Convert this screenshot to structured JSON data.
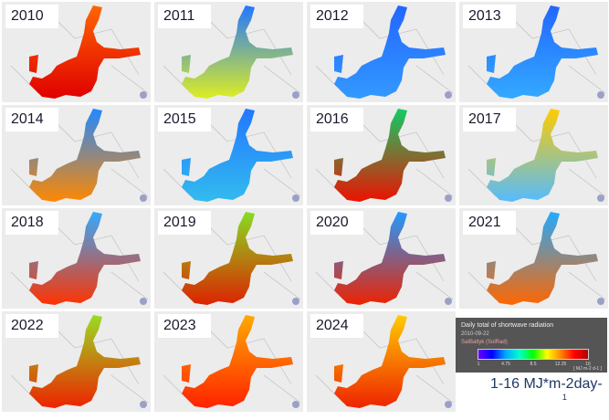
{
  "maps": [
    {
      "year": "2010",
      "north": "#ff6600",
      "south": "#e00000"
    },
    {
      "year": "2011",
      "north": "#2277ff",
      "south": "#ddee22"
    },
    {
      "year": "2012",
      "north": "#2266ff",
      "south": "#3399ff"
    },
    {
      "year": "2013",
      "north": "#2266ff",
      "south": "#33aaff"
    },
    {
      "year": "2014",
      "north": "#2288ff",
      "south": "#ff8800"
    },
    {
      "year": "2015",
      "north": "#2277ff",
      "south": "#33bbee"
    },
    {
      "year": "2016",
      "north": "#11cc66",
      "south": "#ee1100"
    },
    {
      "year": "2017",
      "north": "#ffcc00",
      "south": "#55bbff"
    },
    {
      "year": "2018",
      "north": "#33aaff",
      "south": "#ff3300"
    },
    {
      "year": "2019",
      "north": "#88dd22",
      "south": "#dd2200"
    },
    {
      "year": "2020",
      "north": "#2299ff",
      "south": "#ee2200"
    },
    {
      "year": "2021",
      "north": "#22aaff",
      "south": "#ff6600"
    },
    {
      "year": "2022",
      "north": "#99dd22",
      "south": "#ee2200"
    },
    {
      "year": "2023",
      "north": "#ffaa00",
      "south": "#ff2200"
    },
    {
      "year": "2024",
      "north": "#ffcc00",
      "south": "#ee2200"
    }
  ],
  "legend": {
    "title": "Daily total of shortwave radiation",
    "date": "2010-09-22",
    "source": "SatBaltyk (SolRad)",
    "ticks": [
      "1",
      "4.75",
      "8.5",
      "12.25",
      "16"
    ],
    "units": "[ MJ m-2 d-1 ]"
  },
  "caption": {
    "main": "1-16 MJ*m-2day-",
    "sub": "1"
  }
}
